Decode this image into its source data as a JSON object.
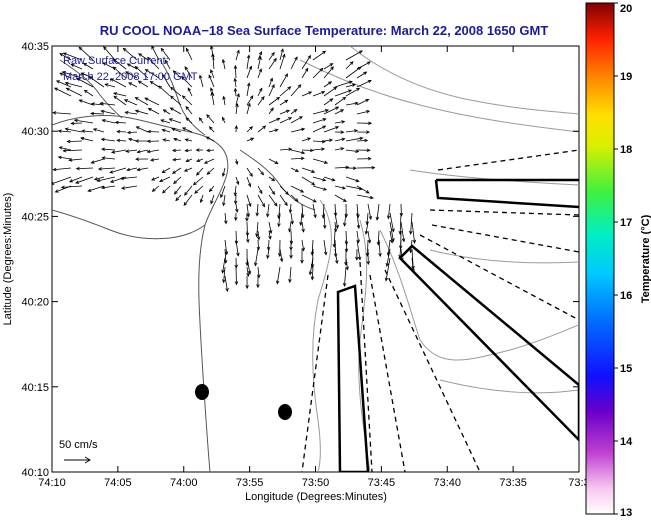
{
  "title": "RU COOL  NOAA−18  Sea Surface Temperature:  March 22, 2008 1650 GMT",
  "legend": {
    "line1": "Raw Surface Current:",
    "line2": "March 22, 2008 17:00 GMT",
    "scale_label": "50 cm/s"
  },
  "axes": {
    "xlabel": "Longitude (Degrees:Minutes)",
    "ylabel": "Latitude (Degrees:Minutes)",
    "xticks": [
      "74:10",
      "74:05",
      "74:00",
      "73:55",
      "73:50",
      "73:45",
      "73:40",
      "73:35",
      "73:3"
    ],
    "yticks": [
      "40:35",
      "40:30",
      "40:25",
      "40:20",
      "40:15",
      "40:10"
    ]
  },
  "colorbar": {
    "label": "Temperature (°C)",
    "min": 13,
    "max": 20,
    "ticks": [
      "20",
      "19",
      "18",
      "17",
      "16",
      "15",
      "14",
      "13"
    ]
  },
  "colors": {
    "title": "#1a1aa0",
    "land_outline": "#555555",
    "bathymetry": "#999999",
    "vectors": "#000000"
  }
}
